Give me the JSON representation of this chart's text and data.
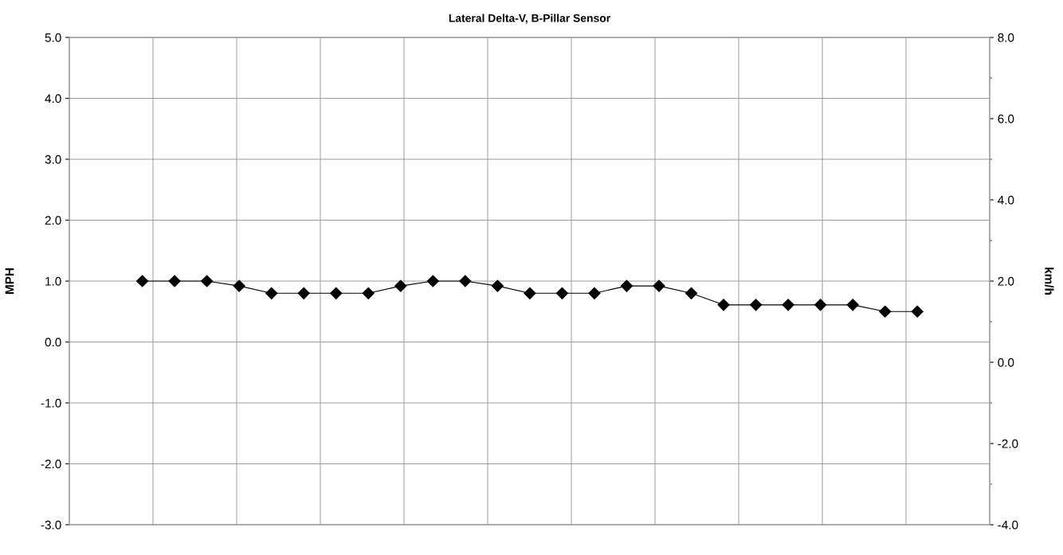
{
  "chart_data": {
    "type": "line",
    "title": "Lateral Delta-V, B-Pillar Sensor",
    "ylabel": "MPH",
    "y2label": "km/h",
    "categories": [
      null,
      null,
      null,
      null,
      null,
      null,
      null,
      null,
      null,
      null,
      null,
      null,
      null,
      null,
      null,
      null,
      null,
      null,
      null,
      null,
      null,
      null,
      null,
      null,
      null
    ],
    "series": [
      {
        "color": "#000000",
        "values": [
          1.0,
          1.0,
          1.0,
          0.92,
          0.8,
          0.8,
          0.8,
          0.8,
          0.92,
          1.0,
          1.0,
          0.92,
          0.8,
          0.8,
          0.8,
          0.92,
          0.92,
          0.8,
          0.61,
          0.61,
          0.61,
          0.61,
          0.61,
          0.5,
          0.5
        ]
      }
    ],
    "ylim": [
      -3,
      5
    ],
    "yticks": [
      {
        "value": -3,
        "label": "-3.0"
      },
      {
        "value": -2,
        "label": "-2.0"
      },
      {
        "value": -1,
        "label": "-1.0"
      },
      {
        "value": 0,
        "label": "0.0"
      },
      {
        "value": 1,
        "label": "1.0"
      },
      {
        "value": 2,
        "label": "2.0"
      },
      {
        "value": 3,
        "label": "3.0"
      },
      {
        "value": 4,
        "label": "4.0"
      },
      {
        "value": 5,
        "label": "5.0"
      }
    ],
    "y2lim": [
      -4,
      8
    ],
    "y2ticks": [
      {
        "value": -4,
        "label": "-4.0"
      },
      {
        "value": -2,
        "label": "-2.0"
      },
      {
        "value": 0,
        "label": "0.0"
      },
      {
        "value": 2,
        "label": "2.0"
      },
      {
        "value": 4,
        "label": "4.0"
      },
      {
        "value": 6,
        "label": "6.0"
      },
      {
        "value": 8,
        "label": "8.0"
      }
    ],
    "grid": true,
    "marker": "diamond",
    "line_style": "solid",
    "tick_labels": "y"
  }
}
